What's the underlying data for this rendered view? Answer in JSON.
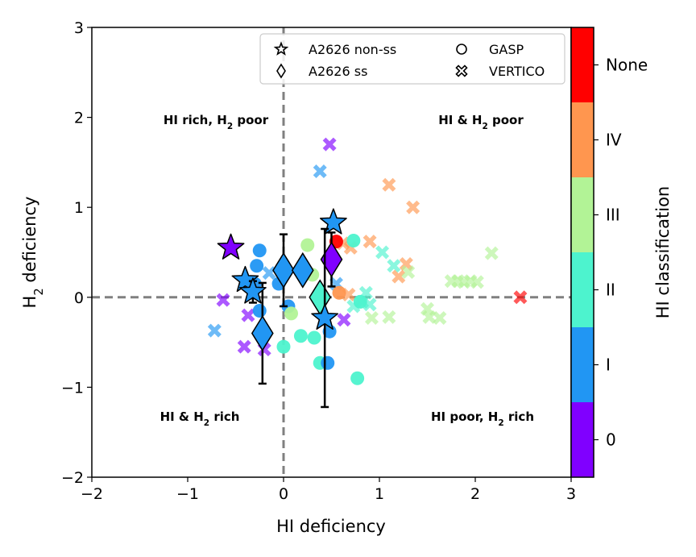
{
  "chart_data": {
    "type": "scatter",
    "xlabel": "HI deficiency",
    "ylabel": "H₂ deficiency",
    "xlim": [
      -2,
      3
    ],
    "ylim": [
      -2,
      3
    ],
    "x_ticks": [
      "−2",
      "−1",
      "0",
      "1",
      "2",
      "3"
    ],
    "y_ticks": [
      "−2",
      "−1",
      "0",
      "1",
      "2",
      "3"
    ],
    "reference_lines": [
      {
        "axis": "x",
        "value": 0,
        "style": "dashed"
      },
      {
        "axis": "y",
        "value": 0,
        "style": "dashed"
      }
    ],
    "quadrant_labels": [
      {
        "text": "HI rich, H₂ poor",
        "x": -0.85,
        "y": 1.97
      },
      {
        "text": "HI & H₂ poor",
        "x": 2.0,
        "y": 1.97
      },
      {
        "text": "HI & H₂ rich",
        "x": -0.85,
        "y": -1.33
      },
      {
        "text": "HI poor, H₂ rich",
        "x": 2.0,
        "y": -1.33
      }
    ],
    "legend": {
      "placement": "top-right",
      "entries": [
        {
          "label": "A2626 non-ss",
          "marker": "star"
        },
        {
          "label": "A2626 ss",
          "marker": "diamond"
        },
        {
          "label": "GASP",
          "marker": "circle"
        },
        {
          "label": "VERTICO",
          "marker": "x"
        }
      ]
    },
    "colorbar": {
      "label": "HI classification",
      "categories": [
        "0",
        "I",
        "II",
        "III",
        "IV",
        "None"
      ],
      "colors": [
        "#8000ff",
        "#2196f3",
        "#4df3ce",
        "#b2f396",
        "#ff964f",
        "#ff0000"
      ]
    },
    "series": [
      {
        "name": "A2626 non-ss",
        "marker": "star",
        "points": [
          {
            "x": -0.55,
            "y": 0.55,
            "cls": 0
          },
          {
            "x": -0.4,
            "y": 0.19,
            "cls": 1
          },
          {
            "x": -0.32,
            "y": 0.06,
            "cls": 1,
            "yerr": 0.12
          },
          {
            "x": 0.52,
            "y": 0.83,
            "cls": 1
          },
          {
            "x": 0.43,
            "y": -0.23,
            "cls": 1,
            "yerr": 0.99
          }
        ]
      },
      {
        "name": "A2626 ss",
        "marker": "diamond",
        "points": [
          {
            "x": -0.22,
            "y": -0.4,
            "cls": 1,
            "yerr": 0.56
          },
          {
            "x": 0.0,
            "y": 0.3,
            "cls": 1,
            "yerr": 0.4
          },
          {
            "x": 0.2,
            "y": 0.3,
            "cls": 1
          },
          {
            "x": 0.38,
            "y": 0.0,
            "cls": 2
          },
          {
            "x": 0.5,
            "y": 0.42,
            "cls": 0,
            "yerr": 0.3
          }
        ]
      },
      {
        "name": "GASP",
        "marker": "circle",
        "points": [
          {
            "x": -0.25,
            "y": 0.52,
            "cls": 1
          },
          {
            "x": -0.28,
            "y": 0.35,
            "cls": 1
          },
          {
            "x": -0.3,
            "y": 0.15,
            "cls": 1
          },
          {
            "x": -0.25,
            "y": -0.15,
            "cls": 1
          },
          {
            "x": -0.05,
            "y": 0.15,
            "cls": 1
          },
          {
            "x": 0.05,
            "y": -0.1,
            "cls": 1
          },
          {
            "x": 0.25,
            "y": 0.58,
            "cls": 3
          },
          {
            "x": 0.3,
            "y": 0.25,
            "cls": 3
          },
          {
            "x": 0.08,
            "y": -0.18,
            "cls": 3
          },
          {
            "x": 0.0,
            "y": -0.55,
            "cls": 2
          },
          {
            "x": 0.18,
            "y": -0.43,
            "cls": 2
          },
          {
            "x": 0.32,
            "y": -0.45,
            "cls": 2
          },
          {
            "x": 0.38,
            "y": -0.73,
            "cls": 2
          },
          {
            "x": 0.46,
            "y": -0.73,
            "cls": 1
          },
          {
            "x": 0.48,
            "y": -0.38,
            "cls": 1
          },
          {
            "x": 0.55,
            "y": 0.62,
            "cls": 5
          },
          {
            "x": 0.58,
            "y": 0.05,
            "cls": 4
          },
          {
            "x": 0.73,
            "y": 0.63,
            "cls": 2
          },
          {
            "x": 0.77,
            "y": -0.9,
            "cls": 2
          },
          {
            "x": 0.8,
            "y": -0.05,
            "cls": 2
          }
        ]
      },
      {
        "name": "VERTICO",
        "marker": "x",
        "points": [
          {
            "x": -0.63,
            "y": -0.03,
            "cls": 0
          },
          {
            "x": -0.72,
            "y": -0.37,
            "cls": 1
          },
          {
            "x": -0.37,
            "y": -0.2,
            "cls": 0
          },
          {
            "x": -0.41,
            "y": -0.55,
            "cls": 0
          },
          {
            "x": -0.2,
            "y": -0.58,
            "cls": 0
          },
          {
            "x": -0.15,
            "y": 0.27,
            "cls": 1
          },
          {
            "x": 0.38,
            "y": 1.4,
            "cls": 1
          },
          {
            "x": 0.48,
            "y": 1.7,
            "cls": 0
          },
          {
            "x": 0.55,
            "y": 0.15,
            "cls": 1
          },
          {
            "x": 0.63,
            "y": -0.25,
            "cls": 0
          },
          {
            "x": 0.62,
            "y": 0.6,
            "cls": 4
          },
          {
            "x": 0.7,
            "y": 0.55,
            "cls": 4
          },
          {
            "x": 0.68,
            "y": 0.03,
            "cls": 4
          },
          {
            "x": 0.73,
            "y": -0.1,
            "cls": 2
          },
          {
            "x": 0.82,
            "y": -0.05,
            "cls": 2
          },
          {
            "x": 0.86,
            "y": 0.05,
            "cls": 2
          },
          {
            "x": 0.9,
            "y": -0.08,
            "cls": 2
          },
          {
            "x": 0.9,
            "y": 0.62,
            "cls": 4
          },
          {
            "x": 0.92,
            "y": -0.23,
            "cls": 3
          },
          {
            "x": 1.1,
            "y": -0.22,
            "cls": 3
          },
          {
            "x": 1.1,
            "y": 1.25,
            "cls": 4
          },
          {
            "x": 1.03,
            "y": 0.5,
            "cls": 2
          },
          {
            "x": 1.15,
            "y": 0.35,
            "cls": 2
          },
          {
            "x": 1.2,
            "y": 0.23,
            "cls": 4
          },
          {
            "x": 1.28,
            "y": 0.37,
            "cls": 4
          },
          {
            "x": 1.3,
            "y": 0.28,
            "cls": 3
          },
          {
            "x": 1.35,
            "y": 1.0,
            "cls": 4
          },
          {
            "x": 1.5,
            "y": -0.13,
            "cls": 3
          },
          {
            "x": 1.52,
            "y": -0.22,
            "cls": 3
          },
          {
            "x": 1.63,
            "y": -0.23,
            "cls": 3
          },
          {
            "x": 1.75,
            "y": 0.18,
            "cls": 3
          },
          {
            "x": 1.82,
            "y": 0.18,
            "cls": 3
          },
          {
            "x": 1.88,
            "y": 0.17,
            "cls": 3
          },
          {
            "x": 1.95,
            "y": 0.18,
            "cls": 3
          },
          {
            "x": 2.02,
            "y": 0.17,
            "cls": 3
          },
          {
            "x": 2.17,
            "y": 0.49,
            "cls": 3
          },
          {
            "x": 2.47,
            "y": 0.0,
            "cls": 5
          }
        ]
      }
    ]
  }
}
